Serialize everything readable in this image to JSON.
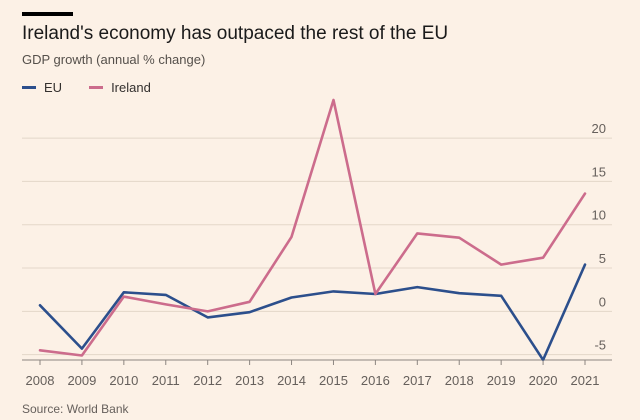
{
  "header": {
    "title": "Ireland's economy has outpaced the rest of the EU",
    "subtitle": "GDP growth (annual % change)"
  },
  "legend": [
    {
      "label": "EU",
      "color": "#2c4f8c"
    },
    {
      "label": "Ireland",
      "color": "#cc6c8c"
    }
  ],
  "source": "Source: World Bank",
  "chart_data": {
    "type": "line",
    "title": "Ireland's economy has outpaced the rest of the EU",
    "ylabel": "GDP growth (annual % change)",
    "xlabel": "",
    "x": [
      "2008",
      "2009",
      "2010",
      "2011",
      "2012",
      "2013",
      "2014",
      "2015",
      "2016",
      "2017",
      "2018",
      "2019",
      "2020",
      "2021"
    ],
    "series": [
      {
        "name": "EU",
        "color": "#2c4f8c",
        "values": [
          0.7,
          -4.3,
          2.2,
          1.9,
          -0.7,
          -0.1,
          1.6,
          2.3,
          2.0,
          2.8,
          2.1,
          1.8,
          -5.6,
          5.4
        ]
      },
      {
        "name": "Ireland",
        "color": "#cc6c8c",
        "values": [
          -4.5,
          -5.1,
          1.7,
          0.8,
          0.0,
          1.1,
          8.6,
          24.4,
          2.0,
          9.0,
          8.5,
          5.4,
          6.2,
          13.6
        ]
      }
    ],
    "ylim": [
      -5.5,
      24.4
    ],
    "yticks": [
      -5,
      0,
      5,
      10,
      15,
      20
    ],
    "ytick_labels": [
      "-5",
      "0",
      "5",
      "10",
      "15",
      "20"
    ],
    "grid": true,
    "legend_position": "top-left"
  }
}
